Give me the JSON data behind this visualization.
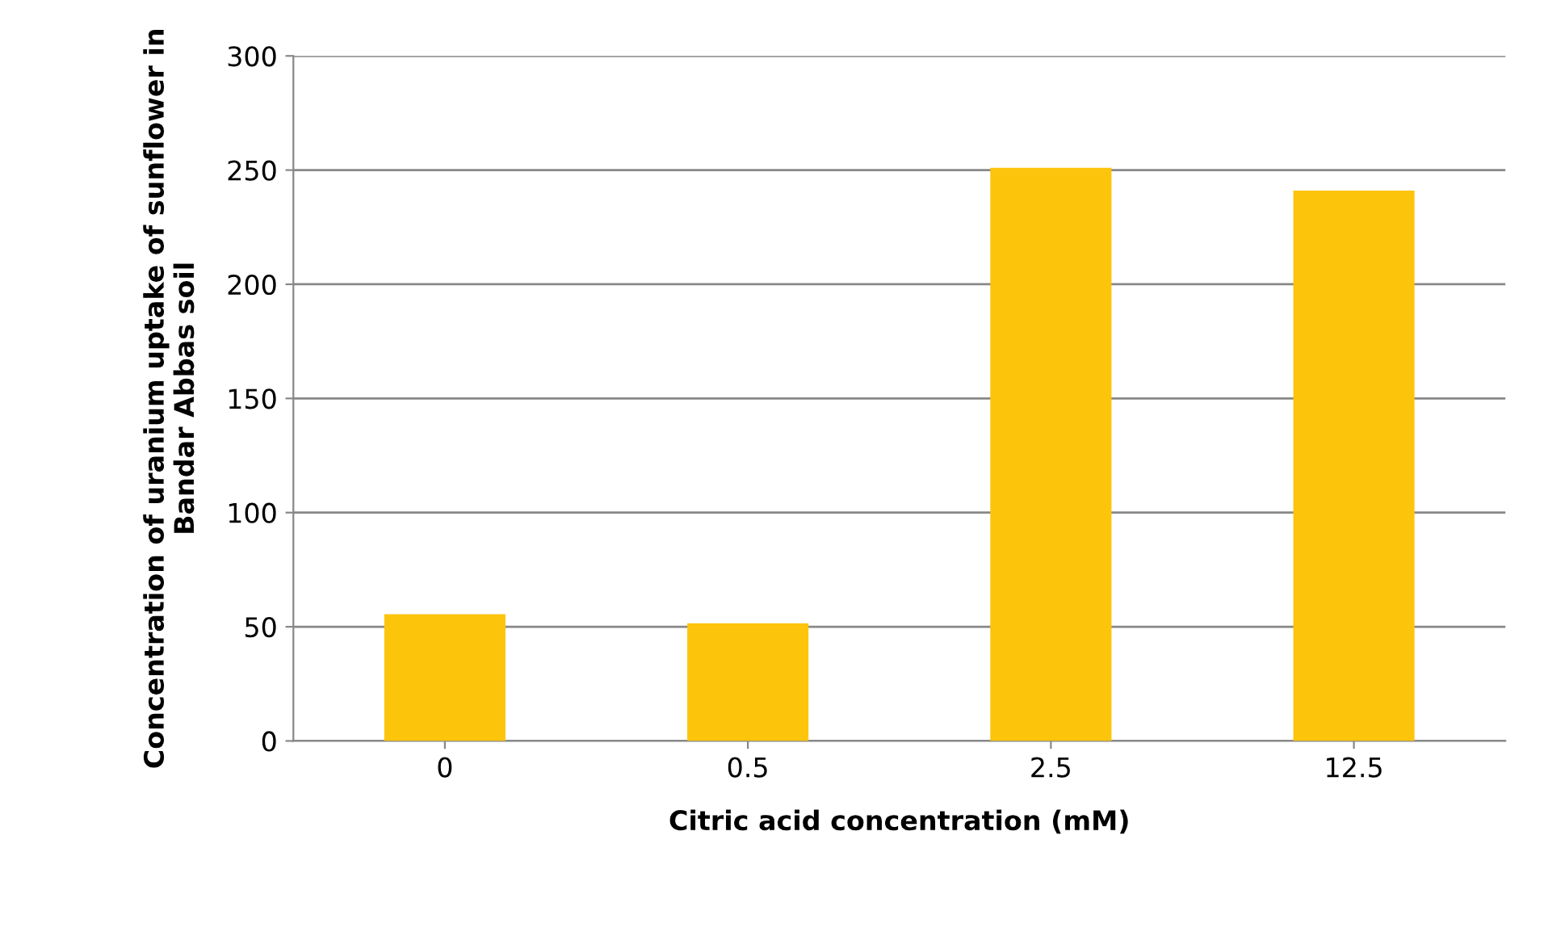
{
  "chart_data": {
    "type": "bar",
    "xlabel": "Citric acid concentration (mM)",
    "ylabel": "Concentration of uranium uptake of sunflower in Bandar Abbas soil",
    "categories": [
      "0",
      "0.5",
      "2.5",
      "12.5"
    ],
    "values": [
      55.5,
      51.5,
      251,
      241
    ],
    "color": "#fdc40c",
    "ylim": [
      0,
      300
    ],
    "yticks": [
      0,
      50,
      100,
      150,
      200,
      250,
      300
    ],
    "grid": "y"
  }
}
